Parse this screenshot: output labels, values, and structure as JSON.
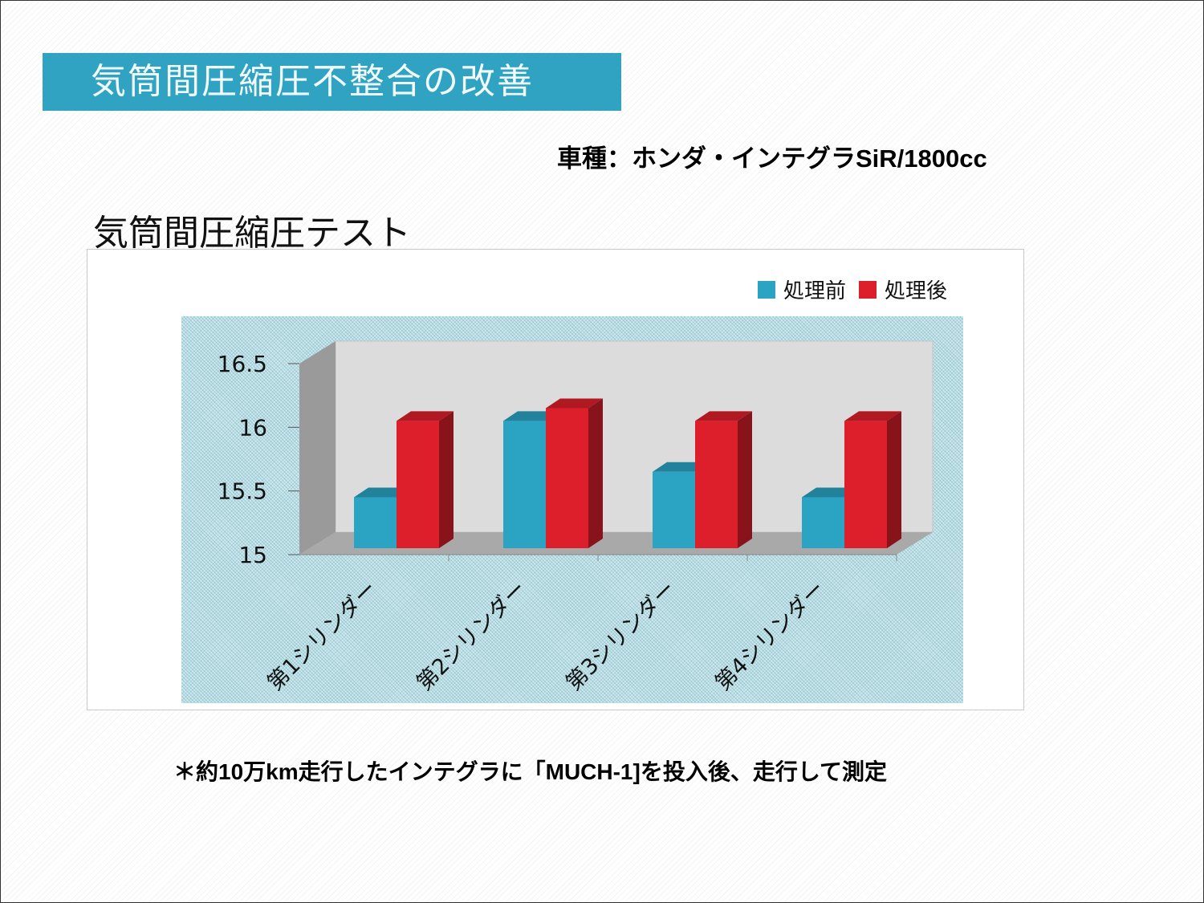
{
  "header": {
    "title": "気筒間圧縮圧不整合の改善",
    "vehicle": "車種：ホンダ・インテグラSiR/1800cc",
    "section_title": "気筒間圧縮圧テスト"
  },
  "footer": {
    "note": "＊約10万km走行したインテグラに「MUCH-1]を投入後、走行して測定"
  },
  "colors": {
    "banner": "#31a3c2",
    "before": "#2ba3c3",
    "after": "#dc1f2b"
  },
  "chart_data": {
    "type": "bar",
    "categories": [
      "第1シリンダー",
      "第2シリンダー",
      "第3シリンダー",
      "第4シリンダー"
    ],
    "series": [
      {
        "name": "処理前",
        "values": [
          15.4,
          16.0,
          15.6,
          15.4
        ],
        "color": "#2ba3c3"
      },
      {
        "name": "処理後",
        "values": [
          16.0,
          16.1,
          16.0,
          16.0
        ],
        "color": "#dc1f2b"
      }
    ],
    "yticks": [
      "15",
      "15.5",
      "16",
      "16.5"
    ],
    "ylim": [
      15,
      16.5
    ],
    "legend_position": "top-right",
    "style": "3d"
  }
}
